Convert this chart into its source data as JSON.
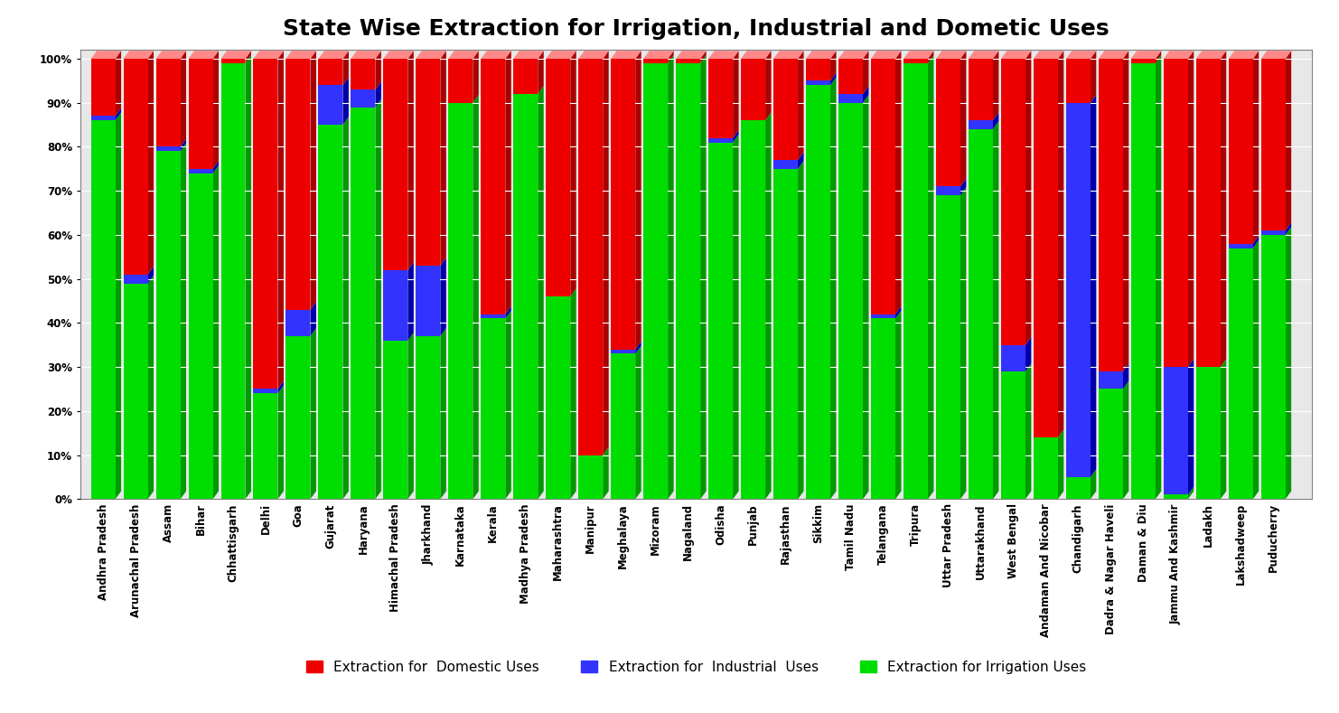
{
  "title": "State Wise Extraction for Irrigation, Industrial and Dometic Uses",
  "states": [
    "Andhra Pradesh",
    "Arunachal Pradesh",
    "Assam",
    "Bihar",
    "Chhattisgarh",
    "Delhi",
    "Goa",
    "Gujarat",
    "Haryana",
    "Himachal Pradesh",
    "Jharkhand",
    "Karnataka",
    "Kerala",
    "Madhya Pradesh",
    "Maharashtra",
    "Manipur",
    "Meghalaya",
    "Mizoram",
    "Nagaland",
    "Odisha",
    "Punjab",
    "Rajasthan",
    "Sikkim",
    "Tamil Nadu",
    "Telangana",
    "Tripura",
    "Uttar Pradesh",
    "Uttarakhand",
    "West Bengal",
    "Andaman And Nicobar",
    "Chandigarh",
    "Dadra & Nagar Haveli",
    "Daman & Diu",
    "Jammu And Kashmir",
    "Ladakh",
    "Lakshadweep",
    "Puducherry"
  ],
  "irrigation": [
    86,
    49,
    79,
    74,
    99,
    24,
    37,
    85,
    89,
    36,
    37,
    90,
    41,
    92,
    46,
    10,
    33,
    99,
    99,
    81,
    86,
    75,
    94,
    90,
    41,
    99,
    69,
    84,
    29,
    14,
    5,
    25,
    99,
    1,
    30,
    57,
    60
  ],
  "industrial": [
    1,
    2,
    1,
    1,
    0,
    1,
    6,
    9,
    4,
    16,
    16,
    0,
    1,
    0,
    0,
    0,
    1,
    0,
    0,
    1,
    0,
    2,
    1,
    2,
    1,
    0,
    2,
    2,
    6,
    0,
    85,
    4,
    0,
    29,
    0,
    1,
    1
  ],
  "domestic": [
    13,
    49,
    20,
    25,
    1,
    75,
    57,
    6,
    7,
    48,
    47,
    10,
    58,
    8,
    54,
    90,
    66,
    1,
    1,
    18,
    14,
    23,
    5,
    8,
    58,
    1,
    29,
    14,
    65,
    86,
    10,
    71,
    1,
    70,
    70,
    42,
    39
  ],
  "color_irrigation": "#00DD00",
  "color_industrial": "#3333FF",
  "color_domestic": "#EE0000",
  "color_irrigation_side": "#009900",
  "color_industrial_side": "#0000AA",
  "color_domestic_side": "#AA0000",
  "legend_labels": [
    "Extraction for  Domestic Uses",
    "Extraction for  Industrial  Uses",
    "Extraction for Irrigation Uses"
  ],
  "ylabel_ticks": [
    "0%",
    "10%",
    "20%",
    "30%",
    "40%",
    "50%",
    "60%",
    "70%",
    "80%",
    "90%",
    "100%"
  ],
  "plot_bg_color": "#E8E8E8",
  "fig_bg_color": "#FFFFFF",
  "title_fontsize": 18,
  "tick_fontsize": 8.5,
  "legend_fontsize": 11,
  "bar_width": 0.75,
  "depth": 3.5
}
